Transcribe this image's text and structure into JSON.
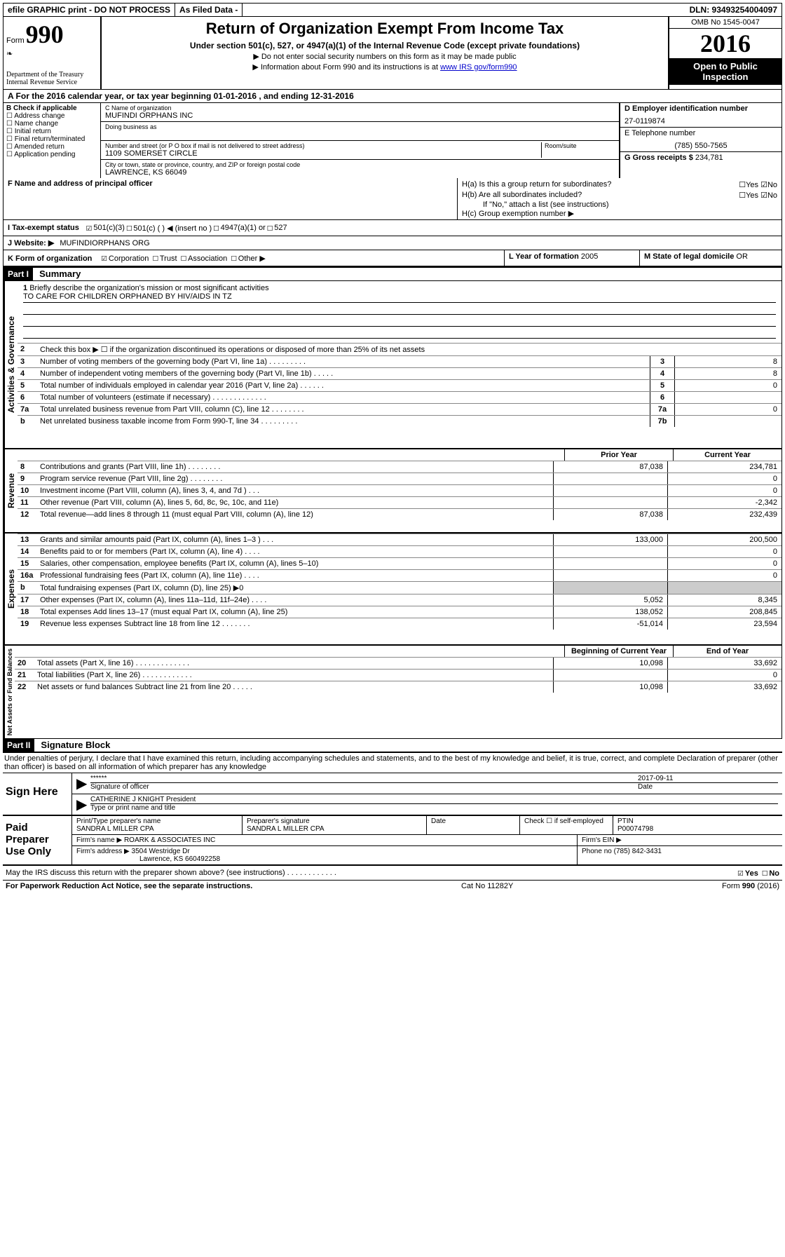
{
  "topbar": {
    "efile": "efile GRAPHIC print - DO NOT PROCESS",
    "as_filed": "As Filed Data -",
    "dln": "DLN: 93493254004097"
  },
  "header": {
    "form_label": "Form",
    "form_number": "990",
    "dept": "Department of the Treasury",
    "irs": "Internal Revenue Service",
    "title": "Return of Organization Exempt From Income Tax",
    "subtitle": "Under section 501(c), 527, or 4947(a)(1) of the Internal Revenue Code (except private foundations)",
    "note1": "▶ Do not enter social security numbers on this form as it may be made public",
    "note2_pre": "▶ Information about Form 990 and its instructions is at ",
    "note2_link": "www IRS gov/form990",
    "omb": "OMB No 1545-0047",
    "year": "2016",
    "inspection": "Open to Public Inspection"
  },
  "row_a": "A  For the 2016 calendar year, or tax year beginning 01-01-2016   , and ending 12-31-2016",
  "section_b": {
    "header": "B Check if applicable",
    "address": "Address change",
    "name": "Name change",
    "initial": "Initial return",
    "final": "Final return/terminated",
    "amended": "Amended return",
    "pending": "Application pending"
  },
  "section_c": {
    "name_label": "C Name of organization",
    "name": "MUFINDI ORPHANS INC",
    "dba_label": "Doing business as",
    "addr_label": "Number and street (or P O  box if mail is not delivered to street address)",
    "room_label": "Room/suite",
    "addr": "1109 SOMERSET CIRCLE",
    "city_label": "City or town, state or province, country, and ZIP or foreign postal code",
    "city": "LAWRENCE, KS  66049"
  },
  "section_d": {
    "label": "D Employer identification number",
    "ein": "27-0119874",
    "e_label": "E Telephone number",
    "phone": "(785) 550-7565",
    "g_label": "G Gross receipts $",
    "gross": "234,781"
  },
  "section_f": "F  Name and address of principal officer",
  "section_h": {
    "ha": "H(a)  Is this a group return for subordinates?",
    "hb": "H(b)  Are all subordinates included?",
    "hb_note": "If \"No,\" attach a list  (see instructions)",
    "hc": "H(c)  Group exemption number ▶",
    "yes": "Yes",
    "no": "No"
  },
  "line_i": {
    "label": "I   Tax-exempt status",
    "c3": "501(c)(3)",
    "c": "501(c) (   ) ◀ (insert no )",
    "a1": "4947(a)(1) or",
    "s527": "527"
  },
  "line_j": {
    "label": "J   Website: ▶",
    "val": "MUFINDIORPHANS ORG"
  },
  "line_k": {
    "label": "K Form of organization",
    "corp": "Corporation",
    "trust": "Trust",
    "assoc": "Association",
    "other": "Other ▶"
  },
  "line_l": {
    "label": "L Year of formation",
    "val": "2005"
  },
  "line_m": {
    "label": "M State of legal domicile",
    "val": "OR"
  },
  "part1": {
    "header": "Part I",
    "title": "Summary",
    "q1": "Briefly describe the organization's mission or most significant activities",
    "mission": "TO CARE FOR CHILDREN ORPHANED BY HIV/AIDS IN TZ",
    "q2": "Check this box ▶ ☐ if the organization discontinued its operations or disposed of more than 25% of its net assets",
    "q3": "Number of voting members of the governing body (Part VI, line 1a)  .   .   .   .   .   .   .   .   .",
    "q4": "Number of independent voting members of the governing body (Part VI, line 1b)  .   .   .   .   .",
    "q5": "Total number of individuals employed in calendar year 2016 (Part V, line 2a)  .   .   .   .   .   .",
    "q6": "Total number of volunteers (estimate if necessary)  .   .   .   .   .   .   .   .   .   .   .   .   .",
    "q7a": "Total unrelated business revenue from Part VIII, column (C), line 12  .   .   .   .   .   .   .   .",
    "q7b": "Net unrelated business taxable income from Form 990-T, line 34  .   .   .   .   .   .   .   .   .",
    "v3": "8",
    "v4": "8",
    "v5": "0",
    "v6": "",
    "v7a": "0",
    "v7b": "",
    "prior": "Prior Year",
    "current": "Current Year",
    "lines": [
      {
        "n": "8",
        "t": "Contributions and grants (Part VIII, line 1h)  .   .   .   .   .   .   .   .",
        "p": "87,038",
        "c": "234,781"
      },
      {
        "n": "9",
        "t": "Program service revenue (Part VIII, line 2g)  .   .   .   .   .   .   .   .",
        "p": "",
        "c": "0"
      },
      {
        "n": "10",
        "t": "Investment income (Part VIII, column (A), lines 3, 4, and 7d )  .   .   .",
        "p": "",
        "c": "0"
      },
      {
        "n": "11",
        "t": "Other revenue (Part VIII, column (A), lines 5, 6d, 8c, 9c, 10c, and 11e)",
        "p": "",
        "c": "-2,342"
      },
      {
        "n": "12",
        "t": "Total revenue—add lines 8 through 11 (must equal Part VIII, column (A), line 12)",
        "p": "87,038",
        "c": "232,439"
      }
    ],
    "exp_lines": [
      {
        "n": "13",
        "t": "Grants and similar amounts paid (Part IX, column (A), lines 1–3 )  .   .   .",
        "p": "133,000",
        "c": "200,500"
      },
      {
        "n": "14",
        "t": "Benefits paid to or for members (Part IX, column (A), line 4)  .   .   .   .",
        "p": "",
        "c": "0"
      },
      {
        "n": "15",
        "t": "Salaries, other compensation, employee benefits (Part IX, column (A), lines 5–10)",
        "p": "",
        "c": "0"
      },
      {
        "n": "16a",
        "t": "Professional fundraising fees (Part IX, column (A), line 11e)  .   .   .   .",
        "p": "",
        "c": "0"
      },
      {
        "n": "b",
        "t": "Total fundraising expenses (Part IX, column (D), line 25) ▶0",
        "p": "—",
        "c": "—"
      },
      {
        "n": "17",
        "t": "Other expenses (Part IX, column (A), lines 11a–11d, 11f–24e)  .   .   .   .",
        "p": "5,052",
        "c": "8,345"
      },
      {
        "n": "18",
        "t": "Total expenses  Add lines 13–17 (must equal Part IX, column (A), line 25)",
        "p": "138,052",
        "c": "208,845"
      },
      {
        "n": "19",
        "t": "Revenue less expenses  Subtract line 18 from line 12 .   .   .   .   .   .   .",
        "p": "-51,014",
        "c": "23,594"
      }
    ],
    "begin": "Beginning of Current Year",
    "end": "End of Year",
    "net_lines": [
      {
        "n": "20",
        "t": "Total assets (Part X, line 16) .   .   .   .   .   .   .   .   .   .   .   .   .",
        "p": "10,098",
        "c": "33,692"
      },
      {
        "n": "21",
        "t": "Total liabilities (Part X, line 26) .   .   .   .   .   .   .   .   .   .   .   .",
        "p": "",
        "c": "0"
      },
      {
        "n": "22",
        "t": "Net assets or fund balances  Subtract line 21 from line 20 .   .   .   .   .",
        "p": "10,098",
        "c": "33,692"
      }
    ],
    "side_gov": "Activities & Governance",
    "side_rev": "Revenue",
    "side_exp": "Expenses",
    "side_net": "Net Assets or Fund Balances"
  },
  "part2": {
    "header": "Part II",
    "title": "Signature Block",
    "penalty": "Under penalties of perjury, I declare that I have examined this return, including accompanying schedules and statements, and to the best of my knowledge and belief, it is true, correct, and complete  Declaration of preparer (other than officer) is based on all information of which preparer has any knowledge",
    "sign_here": "Sign Here",
    "stars": "******",
    "sig_of": "Signature of officer",
    "date": "2017-09-11",
    "date_label": "Date",
    "officer": "CATHERINE J KNIGHT President",
    "type_name": "Type or print name and title",
    "paid": "Paid Preparer Use Only",
    "prep_name_label": "Print/Type preparer's name",
    "prep_name": "SANDRA L MILLER CPA",
    "prep_sig_label": "Preparer's signature",
    "prep_sig": "SANDRA L MILLER CPA",
    "check_self": "Check ☐ if self-employed",
    "ptin_label": "PTIN",
    "ptin": "P00074798",
    "firm_name_label": "Firm's name    ▶",
    "firm_name": "ROARK & ASSOCIATES INC",
    "firm_ein_label": "Firm's EIN ▶",
    "firm_addr_label": "Firm's address ▶",
    "firm_addr": "3504 Westridge Dr",
    "firm_city": "Lawrence, KS  660492258",
    "phone_label": "Phone no",
    "phone": "(785) 842-3431",
    "discuss": "May the IRS discuss this return with the preparer shown above? (see instructions)  .   .   .   .   .   .   .   .   .   .   .   .",
    "yes": "Yes",
    "no": "No",
    "paperwork": "For Paperwork Reduction Act Notice, see the separate instructions.",
    "cat": "Cat  No  11282Y",
    "form_ref": "Form 990 (2016)"
  }
}
